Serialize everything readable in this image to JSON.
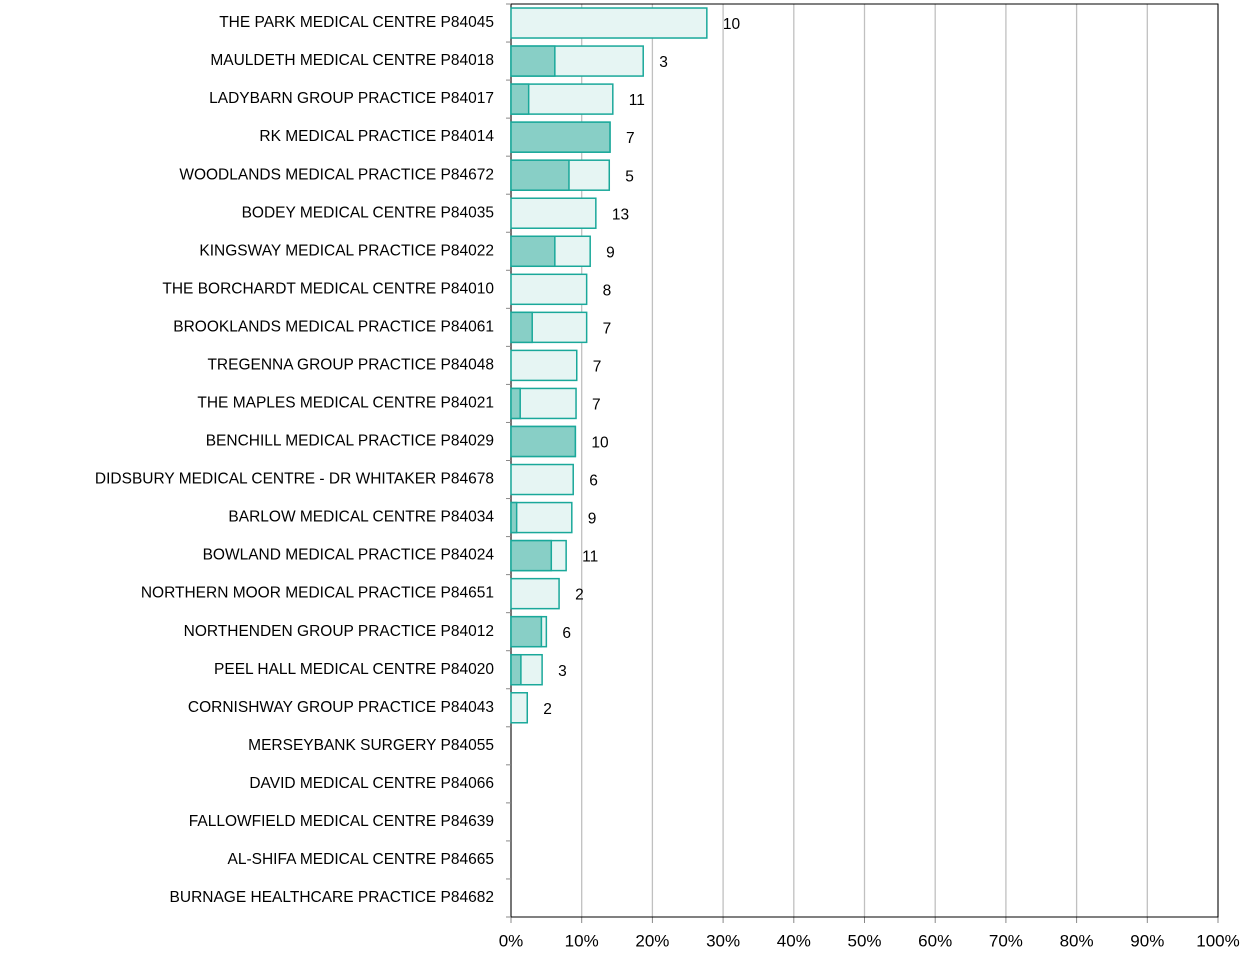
{
  "chart_data": {
    "type": "overlap-bar",
    "orientation": "horizontal",
    "categories": [
      "THE PARK MEDICAL CENTRE P84045",
      "MAULDETH MEDICAL CENTRE P84018",
      "LADYBARN GROUP PRACTICE P84017",
      "RK MEDICAL PRACTICE P84014",
      "WOODLANDS MEDICAL PRACTICE P84672",
      "BODEY MEDICAL CENTRE P84035",
      "KINGSWAY MEDICAL PRACTICE P84022",
      "THE BORCHARDT MEDICAL CENTRE P84010",
      "BROOKLANDS MEDICAL PRACTICE P84061",
      "TREGENNA GROUP PRACTICE P84048",
      "THE MAPLES MEDICAL CENTRE P84021",
      "BENCHILL MEDICAL PRACTICE P84029",
      "DIDSBURY MEDICAL CENTRE - DR WHITAKER P84678",
      "BARLOW MEDICAL CENTRE P84034",
      "BOWLAND MEDICAL PRACTICE P84024",
      "NORTHERN MOOR MEDICAL PRACTICE P84651",
      "NORTHENDEN GROUP PRACTICE P84012",
      "PEEL HALL MEDICAL CENTRE P84020",
      "CORNISHWAY GROUP PRACTICE P84043",
      "MERSEYBANK SURGERY P84055",
      "DAVID MEDICAL CENTRE P84066",
      "FALLOWFIELD MEDICAL CENTRE P84639",
      "AL-SHIFA MEDICAL CENTRE P84665",
      "BURNAGE HEALTHCARE PRACTICE P84682"
    ],
    "series": [
      {
        "color": "#e6f5f3",
        "edge": "#1aa89a",
        "values": [
          27.7,
          18.7,
          14.4,
          14.0,
          13.9,
          12.0,
          11.2,
          10.7,
          10.7,
          9.3,
          9.2,
          9.1,
          8.8,
          8.6,
          7.8,
          6.8,
          5.0,
          4.4,
          2.3,
          0,
          0,
          0,
          0,
          0
        ]
      },
      {
        "color": "#88cfc6",
        "edge": "#1aa89a",
        "values": [
          0,
          6.2,
          2.5,
          14.0,
          8.2,
          0,
          6.2,
          0,
          3.0,
          0,
          1.3,
          9.1,
          0,
          0.8,
          5.7,
          0,
          4.3,
          1.4,
          0,
          0,
          0,
          0,
          0,
          0
        ]
      }
    ],
    "bar_labels": [
      10,
      3,
      11,
      7,
      5,
      13,
      9,
      8,
      7,
      7,
      7,
      10,
      6,
      9,
      11,
      2,
      6,
      3,
      2,
      null,
      null,
      null,
      null,
      null
    ],
    "xlim": [
      0,
      100
    ],
    "xticks": [
      {
        "value": 0,
        "label": "0%"
      },
      {
        "value": 10,
        "label": "10%"
      },
      {
        "value": 20,
        "label": "20%"
      },
      {
        "value": 30,
        "label": "30%"
      },
      {
        "value": 40,
        "label": "40%"
      },
      {
        "value": 50,
        "label": "50%"
      },
      {
        "value": 60,
        "label": "60%"
      },
      {
        "value": 70,
        "label": "70%"
      },
      {
        "value": 80,
        "label": "80%"
      },
      {
        "value": 90,
        "label": "90%"
      },
      {
        "value": 100,
        "label": "100%"
      }
    ],
    "grid": true
  }
}
